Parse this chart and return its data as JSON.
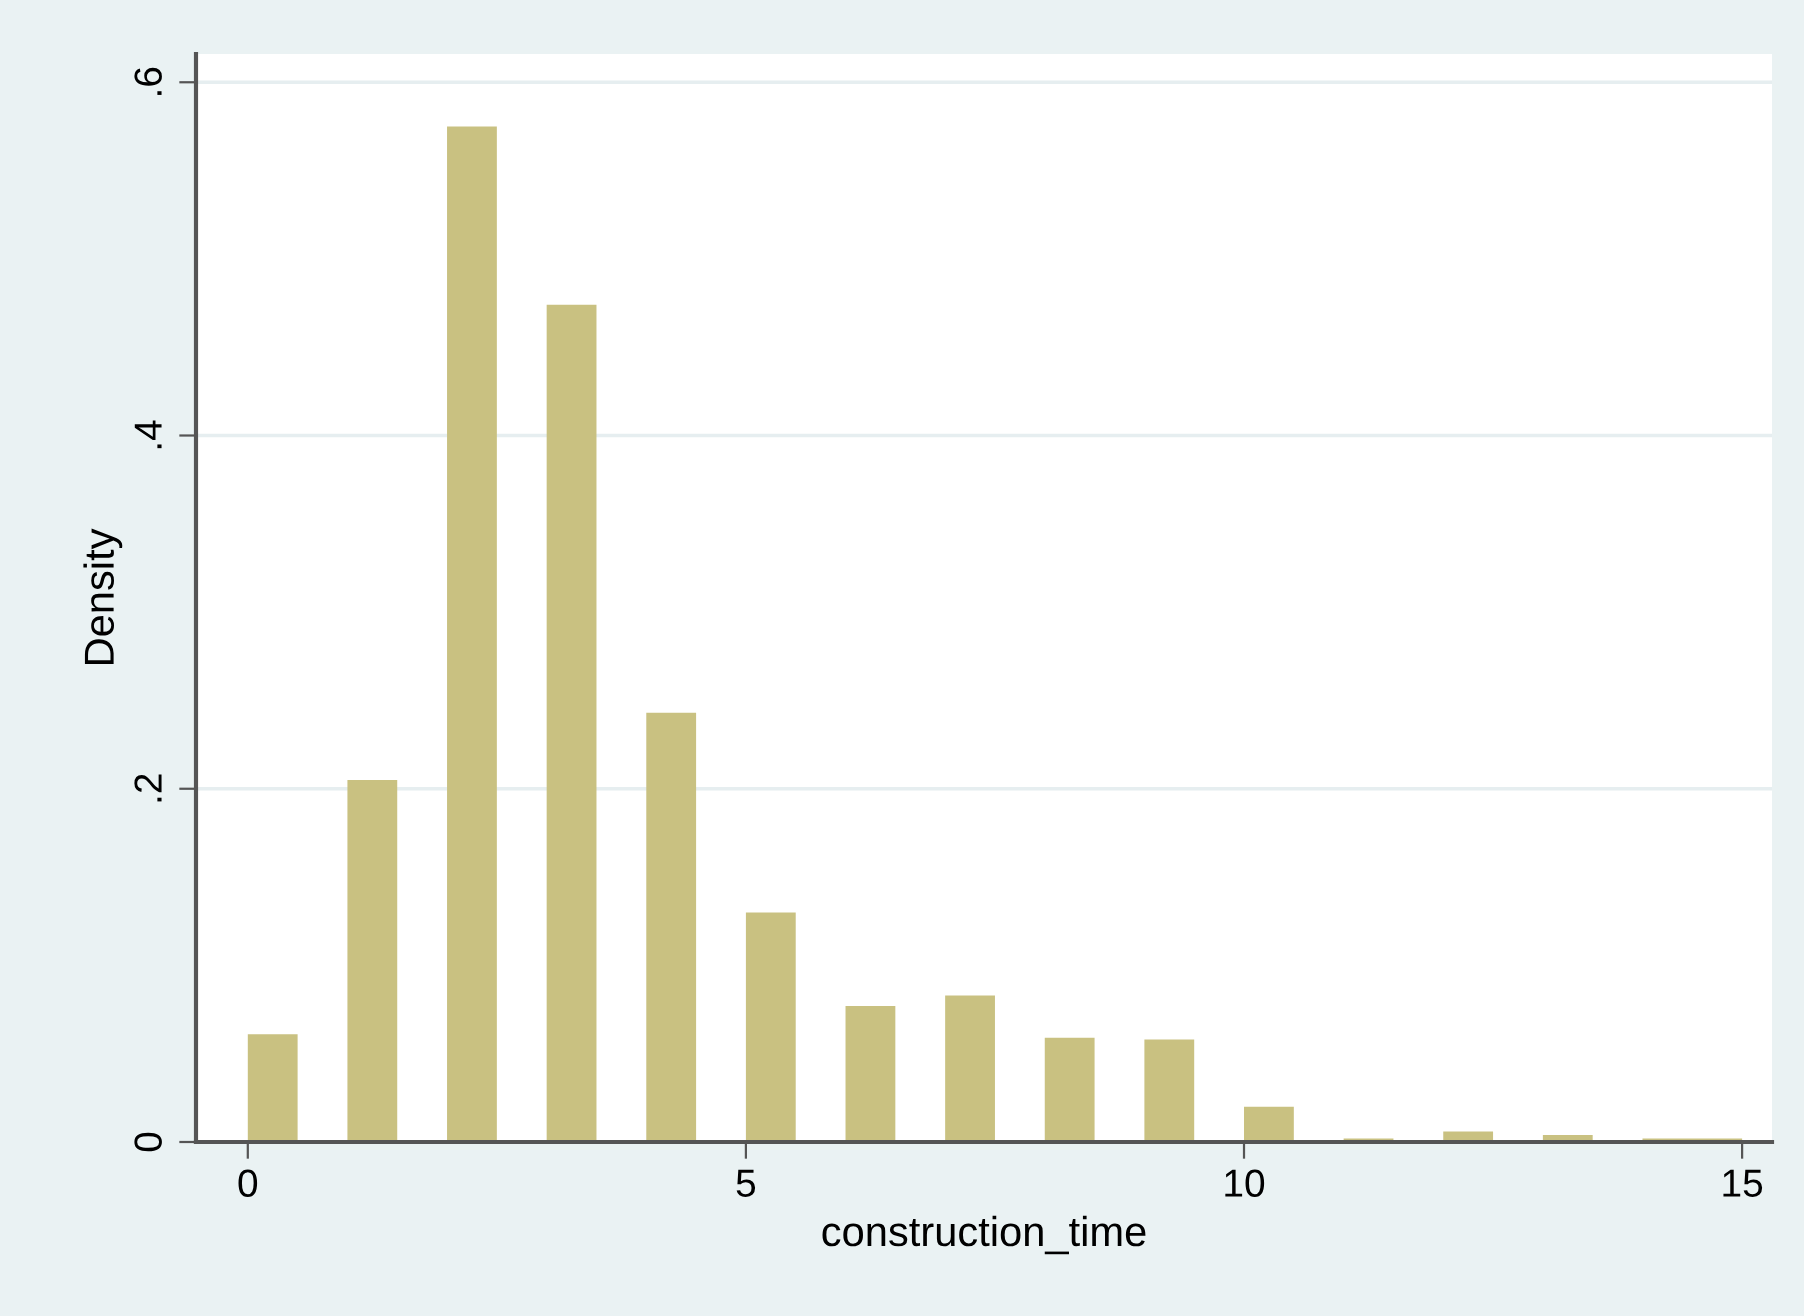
{
  "chart_data": {
    "type": "histogram",
    "xlabel": "construction_time",
    "ylabel": "Density",
    "bins": [
      0,
      0.5,
      1,
      1.5,
      2,
      2.5,
      3,
      3.5,
      4,
      4.5,
      5,
      5.5,
      6,
      6.5,
      7,
      7.5,
      8,
      8.5,
      9,
      9.5,
      10,
      10.5,
      11,
      11.5,
      12,
      12.5,
      13,
      13.5,
      14,
      15
    ],
    "values": [
      0.061,
      0,
      0.205,
      0,
      0.575,
      0,
      0.474,
      0,
      0.243,
      0,
      0.13,
      0,
      0.077,
      0,
      0.083,
      0,
      0.059,
      0,
      0.058,
      0,
      0.02,
      0,
      0.002,
      0,
      0.006,
      0,
      0.004,
      0,
      0.002
    ],
    "color": "#c9c181",
    "xlim": [
      -0.52,
      15.3
    ],
    "xticks": [
      0,
      5,
      10,
      15
    ],
    "ylim": [
      0,
      0.616
    ],
    "yticks": [
      0,
      {
        "value": 0.2,
        "label": ".2"
      },
      {
        "value": 0.4,
        "label": ".4"
      },
      {
        "value": 0.6,
        "label": ".6"
      }
    ],
    "grid": "y",
    "legend": false
  }
}
